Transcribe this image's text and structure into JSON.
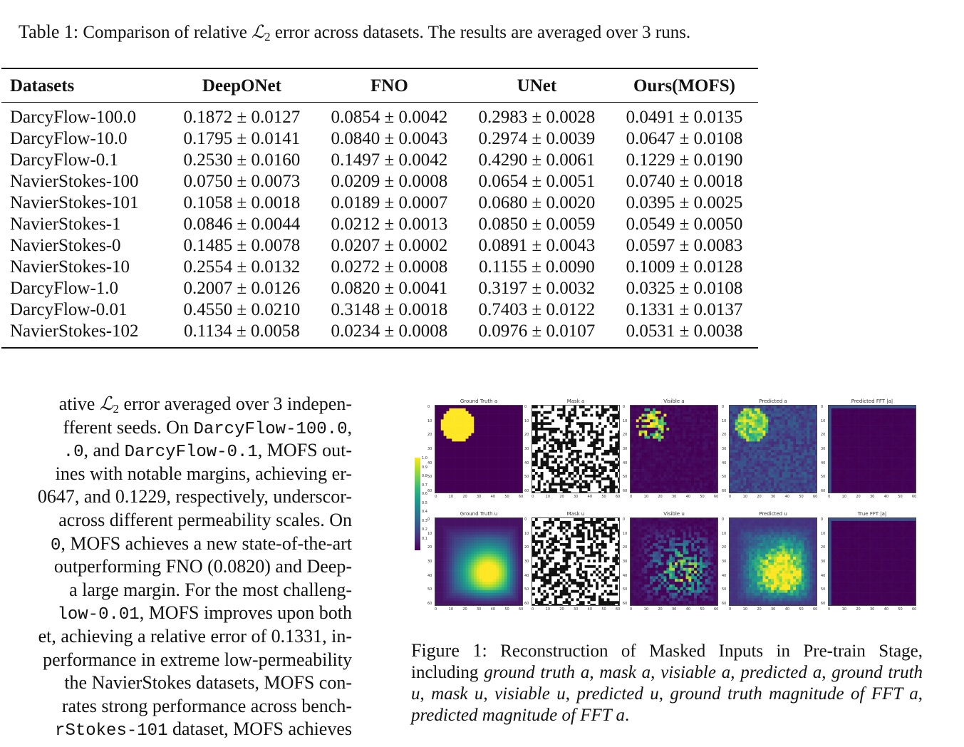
{
  "table_caption": {
    "label": "Table 1:",
    "text_before": "Comparison of relative",
    "math_symbol": "ℒ",
    "math_sub": "2",
    "text_after": "error across datasets. The results are averaged over 3 runs."
  },
  "table": {
    "headers": [
      "Datasets",
      "DeepONet",
      "FNO",
      "UNet",
      "Ours(MOFS)"
    ],
    "rows": [
      [
        "DarcyFlow-100.0",
        "0.1872 ± 0.0127",
        "0.0854 ± 0.0042",
        "0.2983 ± 0.0028",
        "0.0491 ± 0.0135"
      ],
      [
        "DarcyFlow-10.0",
        "0.1795 ± 0.0141",
        "0.0840 ± 0.0043",
        "0.2974 ± 0.0039",
        "0.0647 ± 0.0108"
      ],
      [
        "DarcyFlow-0.1",
        "0.2530 ± 0.0160",
        "0.1497 ± 0.0042",
        "0.4290 ± 0.0061",
        "0.1229 ± 0.0190"
      ],
      [
        "NavierStokes-100",
        "0.0750 ± 0.0073",
        "0.0209 ± 0.0008",
        "0.0654 ± 0.0051",
        "0.0740 ± 0.0018"
      ],
      [
        "NavierStokes-101",
        "0.1058 ± 0.0018",
        "0.0189 ± 0.0007",
        "0.0680 ± 0.0020",
        "0.0395 ± 0.0025"
      ],
      [
        "NavierStokes-1",
        "0.0846 ± 0.0044",
        "0.0212 ± 0.0013",
        "0.0850 ± 0.0059",
        "0.0549 ± 0.0050"
      ],
      [
        "NavierStokes-0",
        "0.1485 ± 0.0078",
        "0.0207 ± 0.0002",
        "0.0891 ± 0.0043",
        "0.0597 ± 0.0083"
      ],
      [
        "NavierStokes-10",
        "0.2554 ± 0.0132",
        "0.0272 ± 0.0008",
        "0.1155 ± 0.0090",
        "0.1009 ± 0.0128"
      ],
      [
        "DarcyFlow-1.0",
        "0.2007 ± 0.0126",
        "0.0820 ± 0.0041",
        "0.3197 ± 0.0032",
        "0.0325 ± 0.0108"
      ],
      [
        "DarcyFlow-0.01",
        "0.4550 ± 0.0210",
        "0.3148 ± 0.0018",
        "0.7403 ± 0.0122",
        "0.1331 ± 0.0137"
      ],
      [
        "NavierStokes-102",
        "0.1134 ± 0.0058",
        "0.0234 ± 0.0008",
        "0.0976 ± 0.0107",
        "0.0531 ± 0.0038"
      ]
    ]
  },
  "body_lines": [
    [
      {
        "t": "ative "
      },
      {
        "t": "ℒ",
        "c": "math"
      },
      {
        "t": "2",
        "c": "sub"
      },
      {
        "t": " error averaged over 3 indepen-"
      }
    ],
    [
      {
        "t": "fferent seeds. On "
      },
      {
        "t": "DarcyFlow-100.0",
        "c": "mono"
      },
      {
        "t": ","
      }
    ],
    [
      {
        "t": ".0",
        "c": "mono"
      },
      {
        "t": ", and "
      },
      {
        "t": "DarcyFlow-0.1",
        "c": "mono"
      },
      {
        "t": ", MOFS out-"
      }
    ],
    [
      {
        "t": "ines with notable margins, achieving er-"
      }
    ],
    [
      {
        "t": "0647, and 0.1229, respectively, underscor-"
      }
    ],
    [
      {
        "t": " across different permeability scales. On"
      }
    ],
    [
      {
        "t": "0",
        "c": "mono"
      },
      {
        "t": ", MOFS achieves a new state-of-the-art"
      }
    ],
    [
      {
        "t": "outperforming FNO (0.0820) and Deep-"
      }
    ],
    [
      {
        "t": " a large margin. For the most challeng-"
      }
    ],
    [
      {
        "t": "low-0.01",
        "c": "mono"
      },
      {
        "t": ", MOFS improves upon both"
      }
    ],
    [
      {
        "t": "et, achieving a relative error of 0.1331, in-"
      }
    ],
    [
      {
        "t": " performance in extreme low-permeability"
      }
    ],
    [
      {
        "t": " the NavierStokes datasets, MOFS con-"
      }
    ],
    [
      {
        "t": "rates strong performance across bench-"
      }
    ],
    [
      {
        "t": "rStokes-101",
        "c": "mono"
      },
      {
        "t": " dataset, MOFS achieves"
      }
    ]
  ],
  "figure": {
    "panel_titles": [
      "Ground Truth a",
      "Mask a",
      "Visible a",
      "Predicted a",
      "Predicted FFT |a|",
      "Ground Truth u",
      "Mask u",
      "Visible u",
      "Predicted u",
      "True FFT |a|"
    ],
    "x_ticks": [
      "0",
      "10",
      "20",
      "30",
      "40",
      "50",
      "60"
    ],
    "y_ticks": [
      "0",
      "10",
      "20",
      "30",
      "40",
      "50",
      "60"
    ],
    "colorbar_ticks": [
      "1.0",
      "0.9",
      "0.8",
      "0.7",
      "0.6",
      "0.5",
      "0.4",
      "0.3",
      "0.2",
      "0.1"
    ],
    "colors": {
      "dark": "#440154",
      "yellow": "#fde725",
      "teal": "#21918c",
      "green": "#5ec962"
    }
  },
  "figure_caption": {
    "label": "Figure 1:",
    "lead": "Reconstruction of Masked Inputs in Pre-train Stage, including",
    "items": [
      {
        "italic": "ground truth",
        "math": "a"
      },
      {
        "italic": "mask",
        "math": "a"
      },
      {
        "italic": "visiable",
        "math": "a"
      },
      {
        "italic": "predicted",
        "math": "a"
      },
      {
        "italic": "ground truth",
        "math": "u"
      },
      {
        "italic": "mask",
        "math": "u"
      },
      {
        "italic": "visiable",
        "math": "u"
      },
      {
        "italic": "predicted",
        "math": "u"
      },
      {
        "italic": "ground truth magnitude of FFT",
        "math": "a"
      },
      {
        "italic": "predicted magnitude of FFT",
        "math": "a"
      }
    ]
  }
}
